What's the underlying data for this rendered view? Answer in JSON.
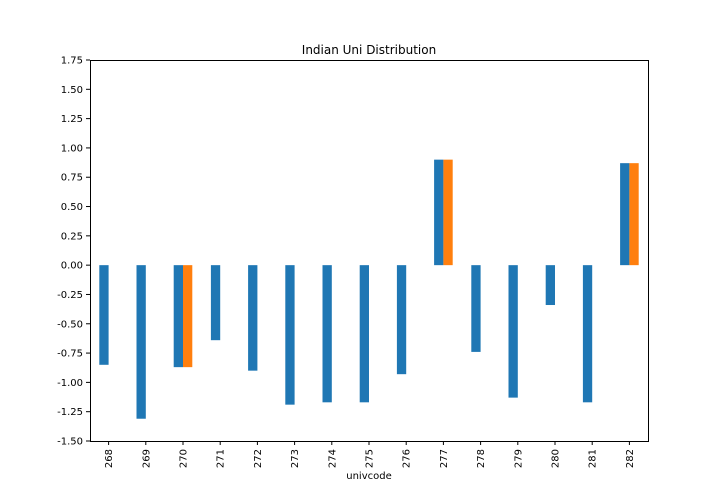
{
  "chart_data": {
    "type": "bar",
    "title": "Indian Uni Distribution",
    "xlabel": "univcode",
    "ylabel": "",
    "ylim": [
      -1.5,
      1.75
    ],
    "yticks": [
      "1.75",
      "1.50",
      "1.25",
      "1.00",
      "0.75",
      "0.50",
      "0.25",
      "0.00",
      "-0.25",
      "-0.50",
      "-0.75",
      "-1.00",
      "-1.25",
      "-1.50"
    ],
    "categories": [
      "268",
      "269",
      "270",
      "271",
      "272",
      "273",
      "274",
      "275",
      "276",
      "277",
      "278",
      "279",
      "280",
      "281",
      "282"
    ],
    "grid": false,
    "legend": "none",
    "series": [
      {
        "color": "#1f77b4",
        "values": [
          -0.85,
          -1.31,
          -0.87,
          -0.64,
          -0.9,
          -1.19,
          -1.17,
          -1.17,
          -0.93,
          0.9,
          -0.74,
          -1.13,
          -0.34,
          -1.17,
          0.87
        ]
      },
      {
        "color": "#ff7f0e",
        "values": [
          null,
          null,
          -0.87,
          null,
          null,
          null,
          null,
          null,
          null,
          0.9,
          null,
          null,
          null,
          null,
          0.87
        ]
      }
    ]
  }
}
